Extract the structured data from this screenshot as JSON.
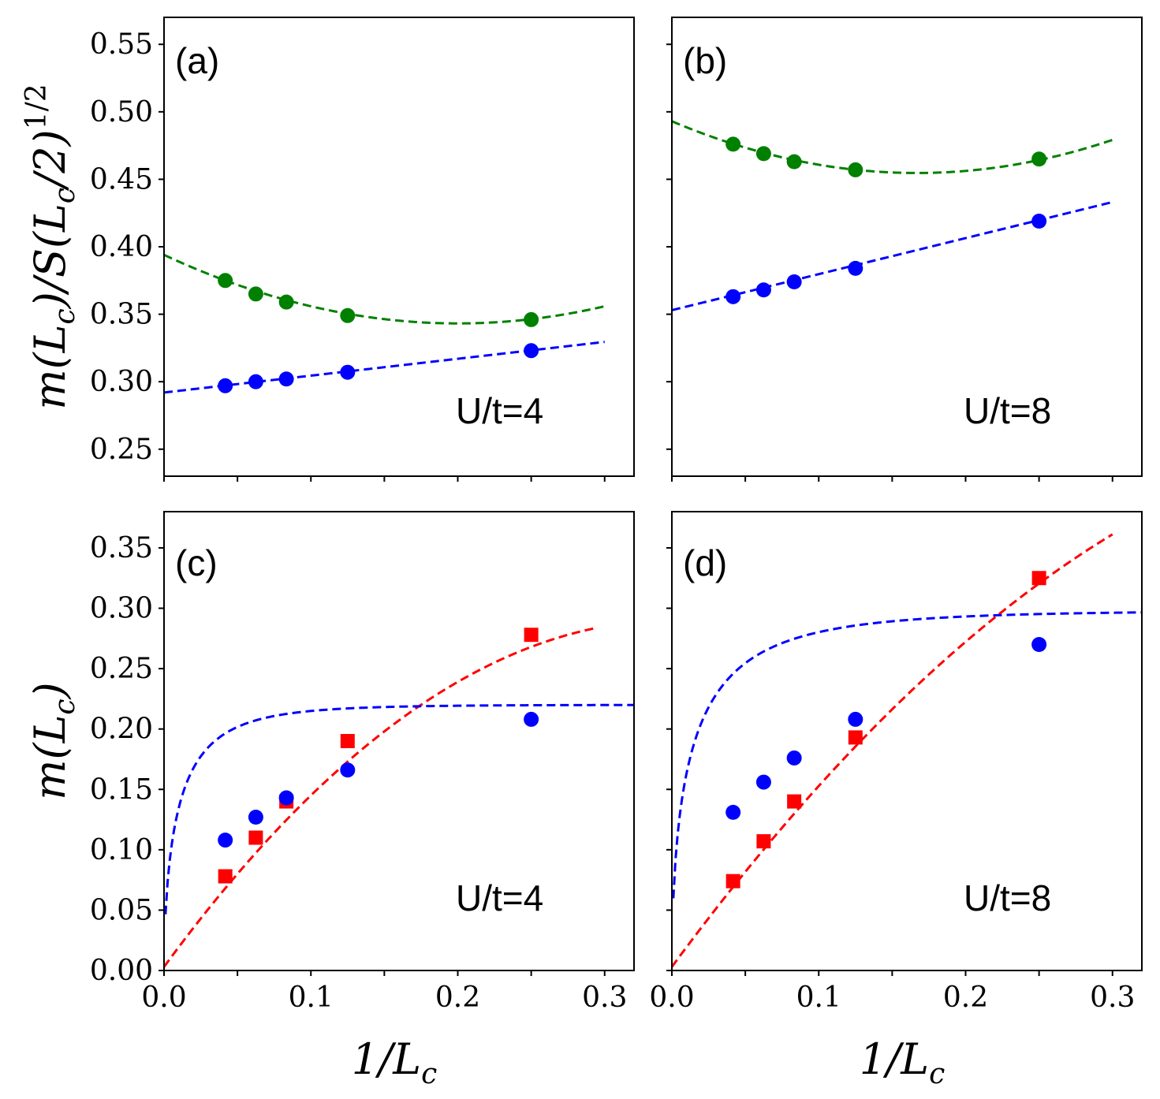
{
  "colors": {
    "green": "#008000",
    "blue": "#0000ff",
    "red": "#ff0000"
  },
  "chart_data": [
    {
      "panel": "a",
      "type": "scatter",
      "label": "(a)",
      "annotation": "U/t=4",
      "ylabel_lines": [
        "m(L",
        "c",
        ")/S(L",
        "c",
        "/2)",
        "1/2"
      ],
      "xlim": [
        0,
        0.32
      ],
      "ylim": [
        0.23,
        0.57
      ],
      "xticks": [
        0,
        0.05,
        0.1,
        0.15,
        0.2,
        0.25,
        0.3
      ],
      "xtick_labels": [],
      "yticks": [
        0.25,
        0.3,
        0.35,
        0.4,
        0.45,
        0.5,
        0.55
      ],
      "ytick_labels": [
        "0.25",
        "0.30",
        "0.35",
        "0.40",
        "0.45",
        "0.50",
        "0.55"
      ],
      "series": [
        {
          "name": "green",
          "color": "green",
          "marker": "circle",
          "x": [
            0.0417,
            0.0625,
            0.0833,
            0.125,
            0.25
          ],
          "y": [
            0.375,
            0.365,
            0.359,
            0.349,
            0.346
          ],
          "fit": {
            "type": "poly",
            "coef": [
              0.394,
              -0.508,
              1.27
            ],
            "x0": 0,
            "x1": 0.3
          }
        },
        {
          "name": "blue",
          "color": "blue",
          "marker": "circle",
          "x": [
            0.0417,
            0.0625,
            0.0833,
            0.125,
            0.25
          ],
          "y": [
            0.297,
            0.3,
            0.302,
            0.307,
            0.323
          ],
          "fit": {
            "type": "poly",
            "coef": [
              0.292,
              0.125,
              0
            ],
            "x0": 0,
            "x1": 0.3
          }
        }
      ]
    },
    {
      "panel": "b",
      "type": "scatter",
      "label": "(b)",
      "annotation": "U/t=8",
      "xlim": [
        0,
        0.32
      ],
      "ylim": [
        0.23,
        0.57
      ],
      "xticks": [
        0,
        0.05,
        0.1,
        0.15,
        0.2,
        0.25,
        0.3
      ],
      "xtick_labels": [],
      "yticks": [
        0.25,
        0.3,
        0.35,
        0.4,
        0.45,
        0.5,
        0.55
      ],
      "ytick_labels": [],
      "series": [
        {
          "name": "green",
          "color": "green",
          "marker": "circle",
          "x": [
            0.0417,
            0.0625,
            0.0833,
            0.125,
            0.25
          ],
          "y": [
            0.476,
            0.469,
            0.463,
            0.457,
            0.465
          ],
          "fit": {
            "type": "poly",
            "coef": [
              0.493,
              -0.46,
              1.38
            ],
            "x0": 0,
            "x1": 0.3
          }
        },
        {
          "name": "blue",
          "color": "blue",
          "marker": "circle",
          "x": [
            0.0417,
            0.0625,
            0.0833,
            0.125,
            0.25
          ],
          "y": [
            0.363,
            0.368,
            0.374,
            0.384,
            0.419
          ],
          "fit": {
            "type": "poly",
            "coef": [
              0.353,
              0.267,
              0
            ],
            "x0": 0,
            "x1": 0.3
          }
        }
      ]
    },
    {
      "panel": "c",
      "type": "scatter",
      "label": "(c)",
      "annotation": "U/t=4",
      "xlabel": "1/L",
      "xlabel_sub": "c",
      "ylabel": "m(L",
      "ylabel_sub": "c",
      "ylabel_end": ")",
      "xlim": [
        0,
        0.32
      ],
      "ylim": [
        0,
        0.38
      ],
      "xticks": [
        0,
        0.05,
        0.1,
        0.15,
        0.2,
        0.25,
        0.3
      ],
      "xtick_labels": [
        "0.0",
        "",
        "0.1",
        "",
        "0.2",
        "",
        "0.3"
      ],
      "yticks": [
        0,
        0.05,
        0.1,
        0.15,
        0.2,
        0.25,
        0.3,
        0.35
      ],
      "ytick_labels": [
        "0.00",
        "0.05",
        "0.10",
        "0.15",
        "0.20",
        "0.25",
        "0.30",
        "0.35"
      ],
      "series": [
        {
          "name": "red",
          "color": "red",
          "marker": "square",
          "x": [
            0.0417,
            0.0625,
            0.0833,
            0.125,
            0.25
          ],
          "y": [
            0.078,
            0.11,
            0.14,
            0.19,
            0.278
          ],
          "fit": {
            "type": "poly",
            "coef": [
              0.003,
              1.66,
              -2.4
            ],
            "x0": 0,
            "x1": 0.295
          }
        },
        {
          "name": "blue",
          "color": "blue",
          "marker": "circle",
          "x": [
            0.0417,
            0.0625,
            0.0833,
            0.125,
            0.25
          ],
          "y": [
            0.108,
            0.127,
            0.143,
            0.166,
            0.208
          ],
          "fit": {
            "type": "saturating",
            "A": 0.22,
            "k": 15,
            "p": 0.6,
            "x0": 0.001,
            "x1": 0.32
          }
        }
      ]
    },
    {
      "panel": "d",
      "type": "scatter",
      "label": "(d)",
      "annotation": "U/t=8",
      "xlabel": "1/L",
      "xlabel_sub": "c",
      "xlim": [
        0,
        0.32
      ],
      "ylim": [
        0,
        0.38
      ],
      "xticks": [
        0,
        0.05,
        0.1,
        0.15,
        0.2,
        0.25,
        0.3
      ],
      "xtick_labels": [
        "0.0",
        "",
        "0.1",
        "",
        "0.2",
        "",
        "0.3"
      ],
      "yticks": [
        0,
        0.05,
        0.1,
        0.15,
        0.2,
        0.25,
        0.3,
        0.35
      ],
      "ytick_labels": [],
      "series": [
        {
          "name": "red",
          "color": "red",
          "marker": "square",
          "x": [
            0.0417,
            0.0625,
            0.0833,
            0.125,
            0.25
          ],
          "y": [
            0.074,
            0.107,
            0.14,
            0.193,
            0.325
          ],
          "fit": {
            "type": "poly",
            "coef": [
              0.003,
              1.65,
              -1.52
            ],
            "x0": 0,
            "x1": 0.3
          }
        },
        {
          "name": "blue",
          "color": "blue",
          "marker": "circle",
          "x": [
            0.0417,
            0.0625,
            0.0833,
            0.125,
            0.25
          ],
          "y": [
            0.131,
            0.156,
            0.176,
            0.208,
            0.27
          ],
          "fit": {
            "type": "saturating",
            "A": 0.298,
            "k": 10,
            "p": 0.55,
            "x0": 0.001,
            "x1": 0.32
          }
        }
      ]
    }
  ]
}
